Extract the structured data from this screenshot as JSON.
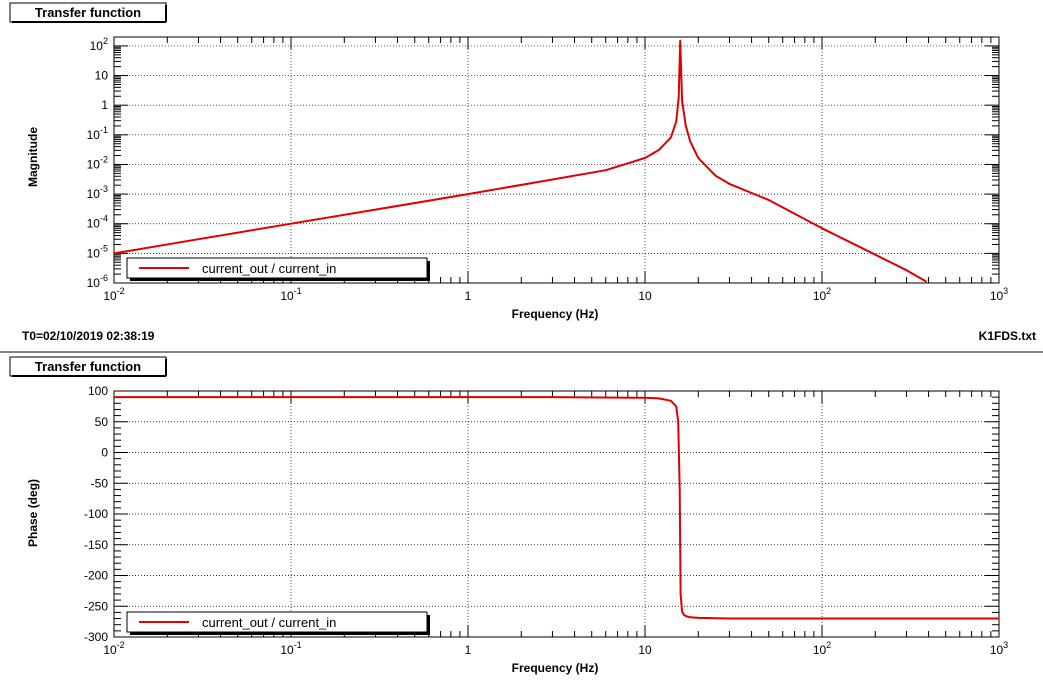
{
  "footer": {
    "timestamp": "T0=02/10/2019 02:38:19",
    "filename": "K1FDS.txt"
  },
  "colors": {
    "trace": "#e00000"
  },
  "chart_data": [
    {
      "type": "line",
      "title": "Transfer function",
      "xlabel": "Frequency (Hz)",
      "ylabel": "Magnitude",
      "xscale": "log",
      "yscale": "log",
      "xlim": [
        0.01,
        1000
      ],
      "ylim": [
        1e-06,
        200
      ],
      "x_ticks": [
        {
          "base": "10",
          "exp": "-2"
        },
        {
          "base": "10",
          "exp": "-1"
        },
        {
          "base": "1",
          "exp": ""
        },
        {
          "base": "10",
          "exp": ""
        },
        {
          "base": "10",
          "exp": "2"
        },
        {
          "base": "10",
          "exp": "3"
        }
      ],
      "y_ticks": [
        {
          "base": "10",
          "exp": "-6"
        },
        {
          "base": "10",
          "exp": "-5"
        },
        {
          "base": "10",
          "exp": "-4"
        },
        {
          "base": "10",
          "exp": "-3"
        },
        {
          "base": "10",
          "exp": "-2"
        },
        {
          "base": "10",
          "exp": "-1"
        },
        {
          "base": "1",
          "exp": ""
        },
        {
          "base": "10",
          "exp": ""
        },
        {
          "base": "10",
          "exp": "2"
        }
      ],
      "grid": true,
      "legend_position": "bottom-left",
      "series": [
        {
          "name": "current_out / current_in",
          "x": [
            0.01,
            0.03,
            0.1,
            0.3,
            1,
            3,
            6,
            10,
            12,
            14,
            15,
            15.5,
            15.8,
            16.2,
            17,
            18,
            20,
            25,
            30,
            50,
            100,
            200,
            300,
            390
          ],
          "y": [
            1e-05,
            3e-05,
            0.0001,
            0.0003,
            0.001,
            0.0031,
            0.0064,
            0.0165,
            0.031,
            0.082,
            0.28,
            1.8,
            150,
            1.4,
            0.2,
            0.06,
            0.0164,
            0.0042,
            0.0022,
            0.00063,
            7e-05,
            9e-06,
            2.7e-06,
            1.1e-06
          ]
        }
      ]
    },
    {
      "type": "line",
      "title": "Transfer function",
      "xlabel": "Frequency (Hz)",
      "ylabel": "Phase (deg)",
      "xscale": "log",
      "xlim": [
        0.01,
        1000
      ],
      "ylim": [
        -300,
        100
      ],
      "x_ticks": [
        {
          "base": "10",
          "exp": "-2"
        },
        {
          "base": "10",
          "exp": "-1"
        },
        {
          "base": "1",
          "exp": ""
        },
        {
          "base": "10",
          "exp": ""
        },
        {
          "base": "10",
          "exp": "2"
        },
        {
          "base": "10",
          "exp": "3"
        }
      ],
      "y_ticks": [
        "100",
        "50",
        "0",
        "-50",
        "-100",
        "-150",
        "-200",
        "-250",
        "-300"
      ],
      "grid": true,
      "legend_position": "bottom-left",
      "series": [
        {
          "name": "current_out / current_in",
          "x": [
            0.01,
            0.1,
            1,
            3,
            10,
            12,
            14,
            15,
            15.4,
            15.7,
            15.9,
            16.2,
            16.6,
            17,
            18,
            20,
            30,
            100,
            1000
          ],
          "y": [
            90,
            90,
            90,
            90,
            89,
            88,
            84,
            75,
            50,
            -60,
            -230,
            -259,
            -264,
            -266,
            -268,
            -269,
            -270,
            -270,
            -270
          ]
        }
      ]
    }
  ]
}
